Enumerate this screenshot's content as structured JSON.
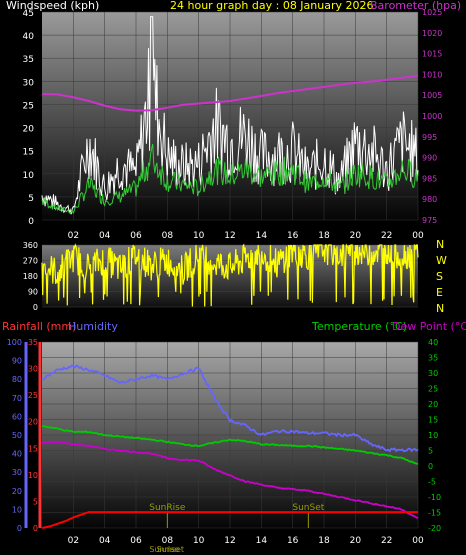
{
  "colors": {
    "background": "#000000",
    "wind_label": "#ffffff",
    "title": "#ffff00",
    "barometer": "#cc33cc",
    "wind_gust": "#ffffff",
    "wind_avg": "#33cc33",
    "direction": "#ffff00",
    "rainfall": "#ff0000",
    "humidity": "#6666ff",
    "temperature": "#00cc00",
    "dewpoint": "#cc00cc",
    "sun": "#999900",
    "axis_left": "#ffffff",
    "axis_rain": "#ff3333",
    "axis_humidity": "#6666ff",
    "axis_temp": "#00cc00"
  },
  "chart_data": [
    {
      "type": "line",
      "title": "24 hour graph day : 08 January 2026",
      "ylabel": "Windspeed (kph)",
      "y2label": "Barometer (hpa)",
      "x_ticks": [
        "02",
        "04",
        "06",
        "08",
        "10",
        "12",
        "14",
        "16",
        "18",
        "20",
        "22",
        "00"
      ],
      "ylim": [
        0,
        45
      ],
      "y_ticks": [
        "0",
        "5",
        "10",
        "15",
        "20",
        "25",
        "30",
        "35",
        "40",
        "45"
      ],
      "y2lim": [
        975,
        1025
      ],
      "y2_ticks": [
        "975",
        "980",
        "985",
        "990",
        "995",
        "1000",
        "1005",
        "1010",
        "1015",
        "1020",
        "1025"
      ],
      "series": [
        {
          "key": "barometer",
          "x": [
            0,
            1,
            2,
            3,
            4,
            5,
            6,
            7,
            8,
            9,
            10,
            11,
            12,
            13,
            14,
            15,
            16,
            17,
            18,
            19,
            20,
            21,
            22,
            23,
            24
          ],
          "values": [
            1005.3,
            1005.2,
            1004.5,
            1003.6,
            1002.5,
            1001.6,
            1001.3,
            1001.4,
            1002,
            1002.7,
            1003,
            1003.3,
            1003.6,
            1004.2,
            1004.8,
            1005.5,
            1006,
            1006.5,
            1007,
            1007.5,
            1008,
            1008.3,
            1008.7,
            1009.2,
            1009.7
          ]
        },
        {
          "key": "gust",
          "x": [
            0,
            1,
            2,
            3,
            4,
            5,
            6,
            7,
            8,
            9,
            10,
            11,
            12,
            13,
            14,
            15,
            16,
            17,
            18,
            19,
            20,
            21,
            22,
            23,
            24
          ],
          "values": [
            8,
            5,
            3,
            25,
            10,
            18,
            15,
            44,
            20,
            17,
            18,
            30,
            25,
            27,
            20,
            21,
            22,
            15,
            20,
            12,
            25,
            22,
            16,
            25,
            20
          ]
        },
        {
          "key": "average",
          "x": [
            0,
            1,
            2,
            3,
            4,
            5,
            6,
            7,
            8,
            9,
            10,
            11,
            12,
            13,
            14,
            15,
            16,
            17,
            18,
            19,
            20,
            21,
            22,
            23,
            24
          ],
          "values": [
            5,
            3,
            2,
            9,
            5,
            6,
            8,
            16,
            10,
            9,
            8,
            13,
            11,
            13,
            11,
            12,
            13,
            9,
            11,
            8,
            12,
            11,
            9,
            13,
            11
          ]
        }
      ]
    },
    {
      "type": "line",
      "ylabel": "",
      "ylim": [
        0,
        360
      ],
      "y_ticks": [
        "0",
        "90",
        "180",
        "270",
        "360"
      ],
      "right_labels": [
        "N",
        "W",
        "S",
        "E",
        "N"
      ],
      "series": [
        {
          "key": "direction",
          "x": [
            0,
            1,
            2,
            3,
            4,
            5,
            6,
            7,
            8,
            9,
            10,
            11,
            12,
            13,
            14,
            15,
            16,
            17,
            18,
            19,
            20,
            21,
            22,
            23,
            24
          ],
          "values": [
            250,
            200,
            290,
            230,
            280,
            220,
            300,
            240,
            270,
            210,
            310,
            260,
            230,
            280,
            320,
            250,
            330,
            300,
            340,
            310,
            330,
            320,
            340,
            300,
            330
          ]
        }
      ]
    },
    {
      "type": "line",
      "ylabel": "Rainfall (mm)",
      "ylabel2": "Humidity",
      "y2label": "Temperature (°C)",
      "y3label": "Dew Point (°C)",
      "x_ticks": [
        "02",
        "04",
        "06",
        "08",
        "10",
        "12",
        "14",
        "16",
        "18",
        "20",
        "22",
        "00"
      ],
      "rain_lim": [
        0,
        35
      ],
      "rain_ticks": [
        "0",
        "5",
        "10",
        "15",
        "20",
        "25",
        "30",
        "35"
      ],
      "humidity_lim": [
        0,
        100
      ],
      "humidity_ticks": [
        "0",
        "10",
        "20",
        "30",
        "40",
        "50",
        "60",
        "70",
        "80",
        "90",
        "100"
      ],
      "temp_lim": [
        -20,
        40
      ],
      "temp_ticks": [
        "-20",
        "-15",
        "-10",
        "-5",
        "0",
        "5",
        "10",
        "15",
        "20",
        "25",
        "30",
        "35",
        "40"
      ],
      "sunrise_label": "SunRise",
      "sunset_label": "SunSet",
      "sunrise_hour": 8,
      "sunset_hour": 17,
      "bottom_labels": [
        "Sunrise",
        "Sunset"
      ],
      "series": [
        {
          "key": "humidity",
          "x": [
            0,
            1,
            2,
            3,
            4,
            5,
            6,
            7,
            8,
            9,
            10,
            11,
            12,
            13,
            14,
            15,
            16,
            17,
            18,
            19,
            20,
            21,
            22,
            23,
            24
          ],
          "values": [
            80,
            85,
            87,
            85,
            82,
            78,
            80,
            82,
            80,
            83,
            86,
            70,
            58,
            55,
            50,
            52,
            52,
            51,
            51,
            50,
            50,
            45,
            42,
            42,
            42
          ]
        },
        {
          "key": "temperature",
          "x": [
            0,
            1,
            2,
            3,
            4,
            5,
            6,
            7,
            8,
            9,
            10,
            11,
            12,
            13,
            14,
            15,
            16,
            17,
            18,
            19,
            20,
            21,
            22,
            23,
            24
          ],
          "values": [
            13,
            12,
            11,
            11,
            10,
            9.5,
            9,
            8.5,
            7.8,
            7,
            6.5,
            7.5,
            8.5,
            8,
            7,
            6.8,
            6.5,
            6.5,
            6,
            5.5,
            5,
            4.2,
            3.5,
            2.5,
            0.5
          ]
        },
        {
          "key": "dewpoint",
          "x": [
            0,
            1,
            2,
            3,
            4,
            5,
            6,
            7,
            8,
            9,
            10,
            11,
            12,
            13,
            14,
            15,
            16,
            17,
            18,
            19,
            20,
            21,
            22,
            23,
            24
          ],
          "values": [
            7.5,
            7.8,
            7,
            6.5,
            5.5,
            5,
            4.5,
            4,
            2.5,
            2,
            1.8,
            -1,
            -3,
            -5,
            -6,
            -7,
            -7.5,
            -8,
            -9,
            -10,
            -11,
            -12,
            -13,
            -14,
            -17
          ]
        },
        {
          "key": "rainfall",
          "x": [
            0,
            0.5,
            1,
            1.5,
            2,
            2.5,
            3,
            24
          ],
          "values": [
            0,
            0.3,
            0.8,
            1.3,
            2,
            2.5,
            3,
            3
          ]
        }
      ]
    }
  ]
}
